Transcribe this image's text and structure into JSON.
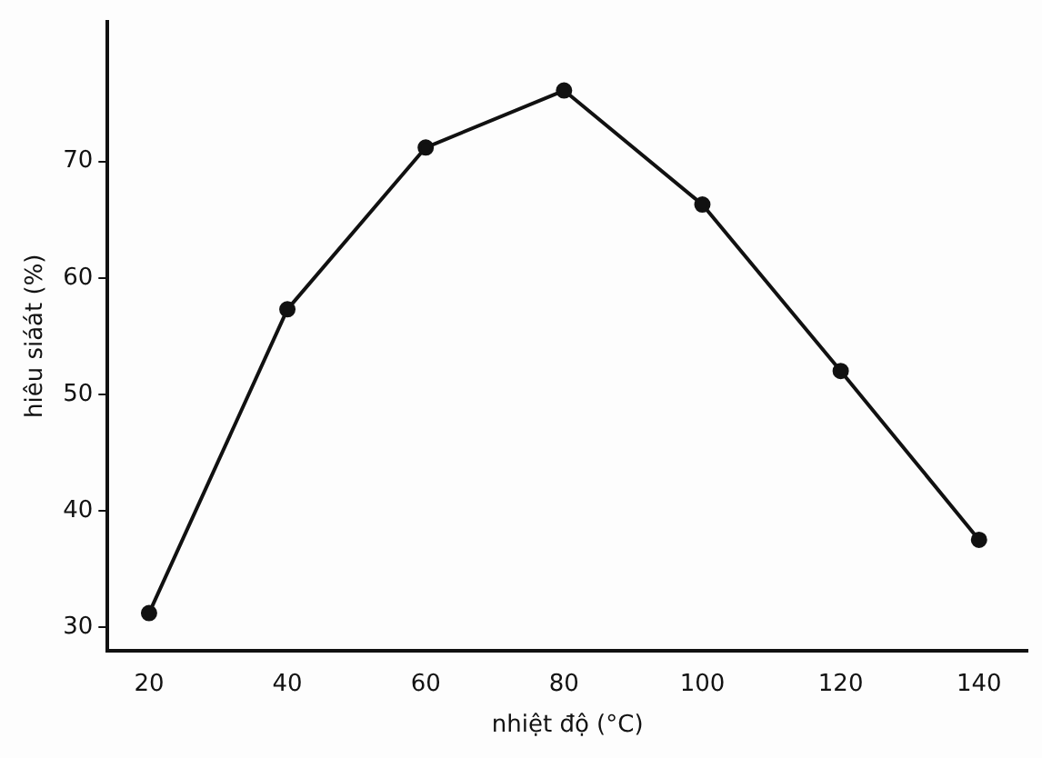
{
  "chart_data": {
    "type": "line",
    "xlabel": "nhiệt độ (°C)",
    "ylabel": "hiêu siáát (%)",
    "x": [
      20,
      40,
      60,
      80,
      100,
      120,
      140
    ],
    "series": [
      {
        "color": "#111111",
        "values": [
          31.2,
          57.3,
          71.2,
          76.1,
          66.3,
          52,
          37.5
        ]
      }
    ],
    "xlim": [
      14,
      147
    ],
    "xticks": [
      20,
      40,
      60,
      80,
      100,
      120,
      140
    ],
    "ylim": [
      28,
      82
    ],
    "yticks": [
      30,
      40,
      50,
      60,
      70
    ],
    "grid": false,
    "legend": false,
    "marker": "circle",
    "line_style": "solid"
  }
}
